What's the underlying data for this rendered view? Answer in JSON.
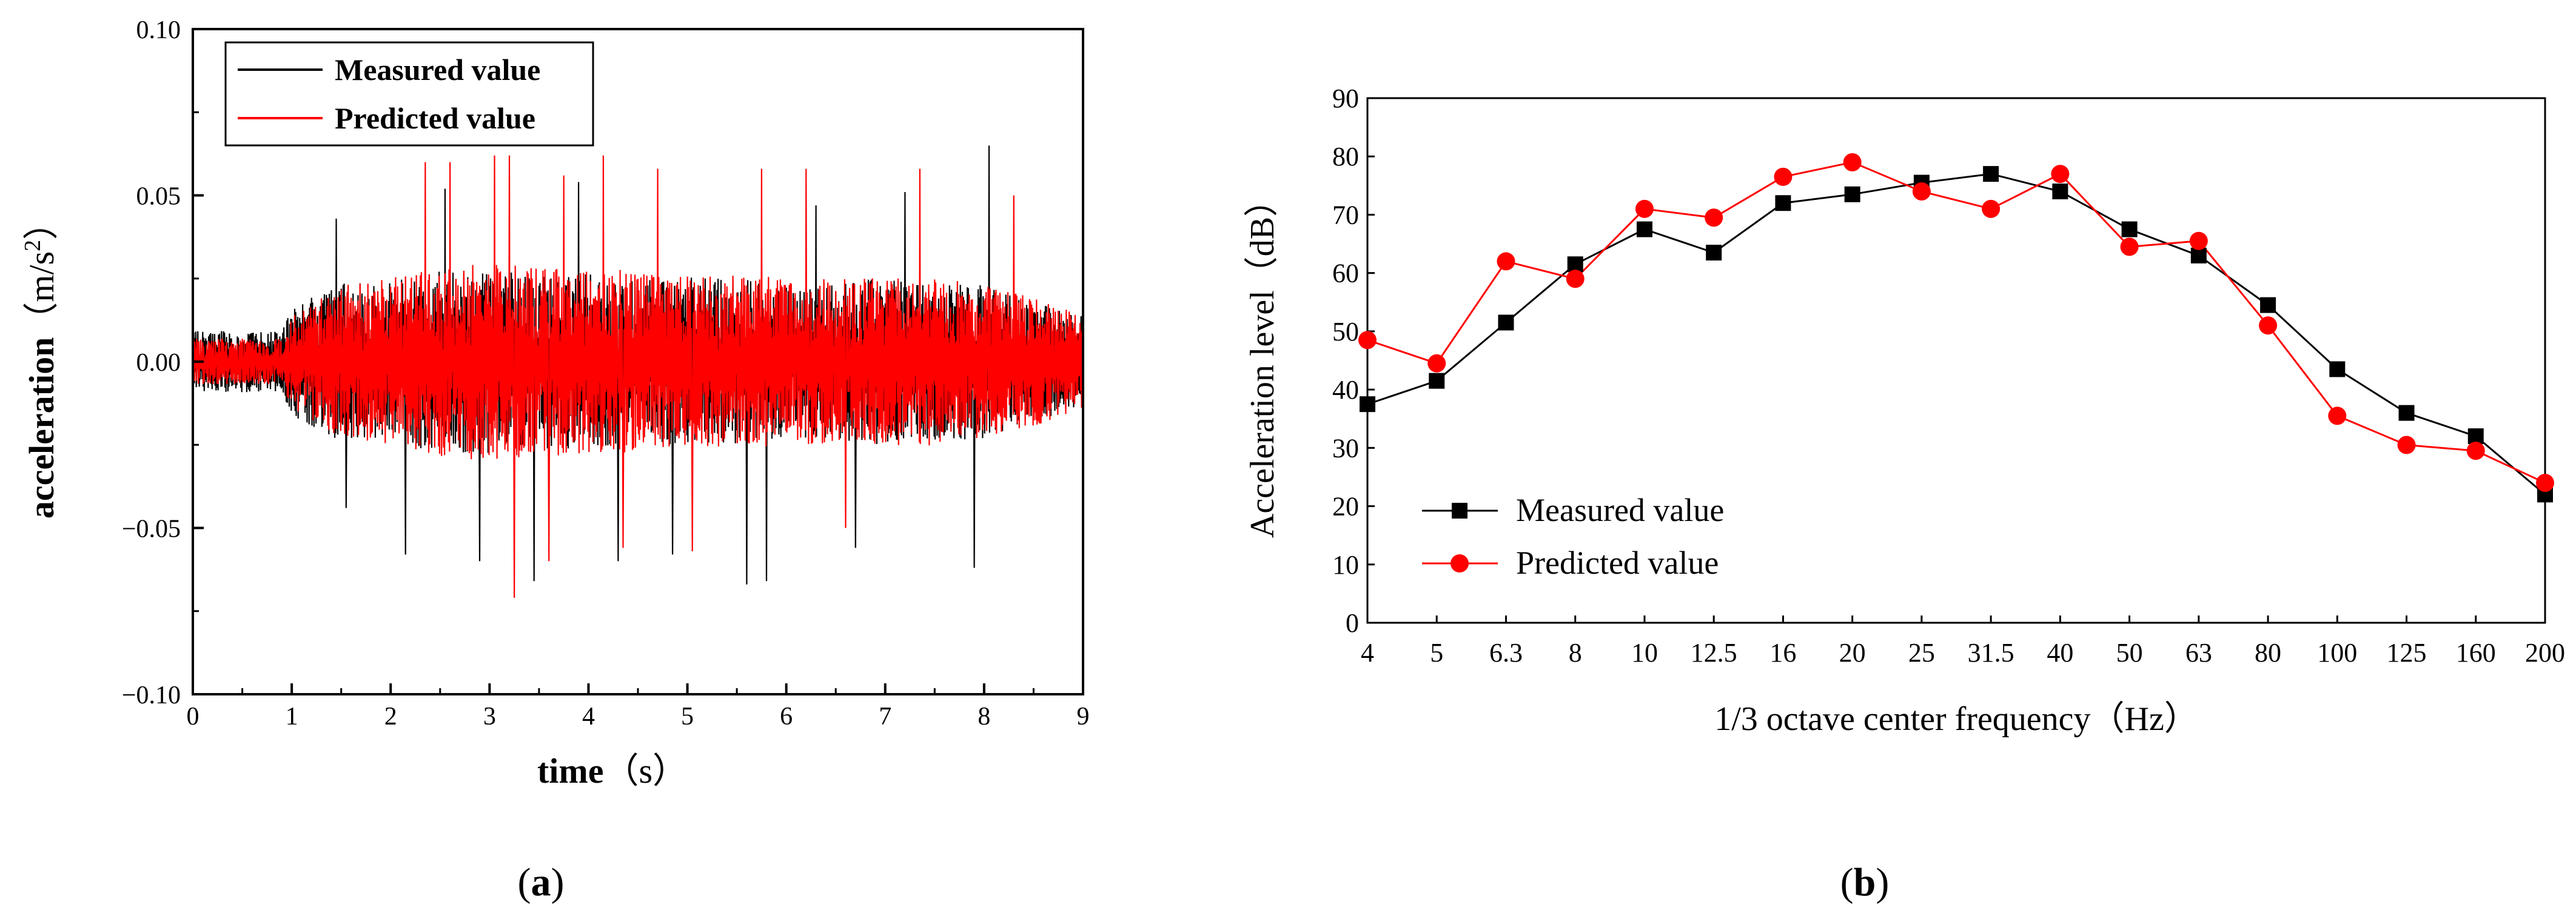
{
  "colors": {
    "measured": "#000000",
    "predicted": "#ff0000",
    "axis": "#000000",
    "background": "#ffffff"
  },
  "chart_data": [
    {
      "id": "a",
      "type": "line",
      "panel_label_open": "(",
      "panel_label": "a",
      "panel_label_close": ")",
      "title": "",
      "xlabel_main": "time",
      "xlabel_unit": "（s）",
      "ylabel_main": "acceleration",
      "ylabel_unit_prefix": "（m/s",
      "ylabel_unit_exp": "2",
      "ylabel_unit_suffix": "）",
      "xlim": [
        0,
        9
      ],
      "ylim": [
        -0.1,
        0.1
      ],
      "x_ticks": [
        "0",
        "1",
        "2",
        "3",
        "4",
        "5",
        "6",
        "7",
        "8",
        "9"
      ],
      "y_ticks": [
        "0.10",
        "0.05",
        "0.00",
        "−0.05",
        "−0.10"
      ],
      "y_tick_values": [
        0.1,
        0.05,
        0.0,
        -0.05,
        -0.1
      ],
      "legend_position": "top-left",
      "series": [
        {
          "name": "Measured value",
          "color": "#000000",
          "sample_rate_hz": 200,
          "envelope": {
            "t": [
              0,
              0.9,
              1.0,
              1.5,
              2.0,
              2.5,
              3.0,
              3.5,
              4.0,
              4.5,
              5.0,
              5.5,
              6.0,
              6.5,
              7.0,
              7.5,
              8.0,
              8.5,
              9.0
            ],
            "amp": [
              0.008,
              0.008,
              0.014,
              0.021,
              0.021,
              0.024,
              0.024,
              0.023,
              0.023,
              0.022,
              0.022,
              0.022,
              0.02,
              0.021,
              0.022,
              0.021,
              0.02,
              0.016,
              0.012
            ]
          },
          "peaks": [
            {
              "t": 1.45,
              "v": 0.043
            },
            {
              "t": 1.55,
              "v": -0.044
            },
            {
              "t": 2.15,
              "v": -0.058
            },
            {
              "t": 2.55,
              "v": 0.052
            },
            {
              "t": 2.9,
              "v": -0.06
            },
            {
              "t": 3.45,
              "v": -0.066
            },
            {
              "t": 3.9,
              "v": 0.054
            },
            {
              "t": 4.3,
              "v": -0.06
            },
            {
              "t": 4.85,
              "v": -0.058
            },
            {
              "t": 5.6,
              "v": -0.067
            },
            {
              "t": 5.8,
              "v": -0.066
            },
            {
              "t": 6.3,
              "v": 0.047
            },
            {
              "t": 6.7,
              "v": -0.056
            },
            {
              "t": 7.2,
              "v": 0.051
            },
            {
              "t": 7.9,
              "v": -0.062
            },
            {
              "t": 8.05,
              "v": 0.065
            }
          ]
        },
        {
          "name": "Predicted value",
          "color": "#ff0000",
          "sample_rate_hz": 200,
          "envelope": {
            "t": [
              0,
              0.9,
              1.0,
              1.5,
              2.0,
              2.5,
              3.0,
              3.5,
              4.0,
              4.5,
              5.0,
              5.5,
              6.0,
              6.5,
              7.0,
              7.5,
              8.0,
              8.5,
              9.0
            ],
            "amp": [
              0.006,
              0.006,
              0.012,
              0.02,
              0.022,
              0.025,
              0.026,
              0.025,
              0.024,
              0.024,
              0.023,
              0.023,
              0.022,
              0.022,
              0.022,
              0.022,
              0.02,
              0.017,
              0.012
            ]
          },
          "peaks": [
            {
              "t": 2.35,
              "v": 0.06
            },
            {
              "t": 2.6,
              "v": 0.06
            },
            {
              "t": 3.05,
              "v": 0.062
            },
            {
              "t": 3.2,
              "v": 0.062
            },
            {
              "t": 3.25,
              "v": -0.071
            },
            {
              "t": 3.75,
              "v": 0.056
            },
            {
              "t": 4.15,
              "v": 0.062
            },
            {
              "t": 4.35,
              "v": -0.056
            },
            {
              "t": 4.7,
              "v": 0.058
            },
            {
              "t": 5.05,
              "v": -0.057
            },
            {
              "t": 5.75,
              "v": 0.058
            },
            {
              "t": 6.2,
              "v": 0.058
            },
            {
              "t": 6.6,
              "v": -0.05
            },
            {
              "t": 7.35,
              "v": 0.058
            },
            {
              "t": 8.3,
              "v": 0.05
            },
            {
              "t": 3.6,
              "v": -0.06
            }
          ]
        }
      ]
    },
    {
      "id": "b",
      "type": "line",
      "panel_label_open": "(",
      "panel_label": "b",
      "panel_label_close": ")",
      "title": "",
      "xlabel": "1/3 octave center frequency（Hz）",
      "ylabel": "Acceleration level（dB）",
      "categories": [
        "4",
        "5",
        "6.3",
        "8",
        "10",
        "12.5",
        "16",
        "20",
        "25",
        "31.5",
        "40",
        "50",
        "63",
        "80",
        "100",
        "125",
        "160",
        "200"
      ],
      "ylim": [
        0,
        90
      ],
      "y_ticks": [
        "0",
        "10",
        "20",
        "30",
        "40",
        "50",
        "60",
        "70",
        "80",
        "90"
      ],
      "y_tick_values": [
        0,
        10,
        20,
        30,
        40,
        50,
        60,
        70,
        80,
        90
      ],
      "legend_position": "bottom-left",
      "series": [
        {
          "name": "Measured value",
          "color": "#000000",
          "marker": "square",
          "values": [
            37.5,
            41.5,
            51.5,
            61.5,
            67.5,
            63.5,
            72,
            73.5,
            75.5,
            77,
            74,
            67.5,
            63,
            54.5,
            43.5,
            36,
            32,
            22
          ]
        },
        {
          "name": "Predicted value",
          "color": "#ff0000",
          "marker": "circle",
          "values": [
            48.5,
            44.5,
            62,
            59,
            71,
            69.5,
            76.5,
            79,
            74,
            71,
            77,
            64.5,
            65.5,
            51,
            35.5,
            30.5,
            29.5,
            24
          ]
        }
      ]
    }
  ]
}
